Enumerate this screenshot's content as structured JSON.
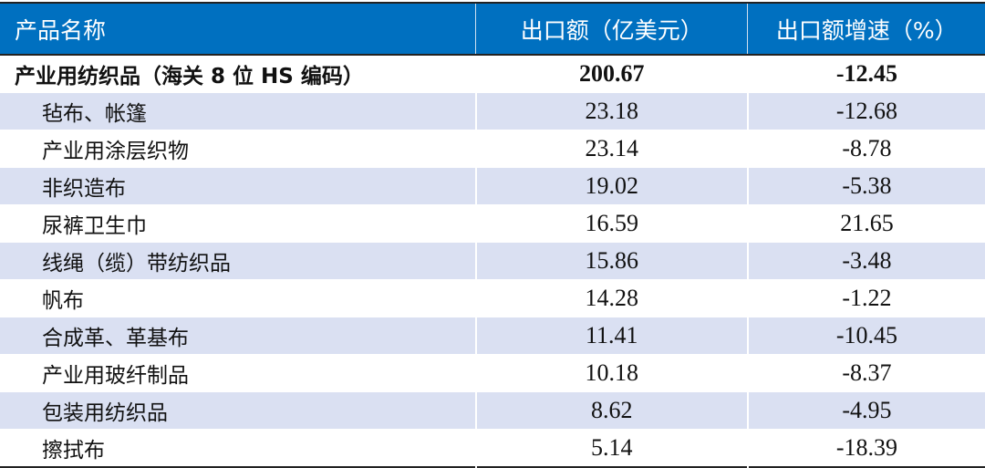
{
  "header": {
    "name": "产品名称",
    "export": "出口额（亿美元）",
    "growth": "出口额增速（%）"
  },
  "total": {
    "name": "产业用纺织品（海关 8 位 HS 编码）",
    "export": "200.67",
    "growth": "-12.45"
  },
  "rows": [
    {
      "name": "毡布、帐篷",
      "export": "23.18",
      "growth": "-12.68"
    },
    {
      "name": "产业用涂层织物",
      "export": "23.14",
      "growth": "-8.78"
    },
    {
      "name": "非织造布",
      "export": "19.02",
      "growth": "-5.38"
    },
    {
      "name": "尿裤卫生巾",
      "export": "16.59",
      "growth": "21.65"
    },
    {
      "name": "线绳（缆）带纺织品",
      "export": "15.86",
      "growth": "-3.48"
    },
    {
      "name": "帆布",
      "export": "14.28",
      "growth": "-1.22"
    },
    {
      "name": "合成革、革基布",
      "export": "11.41",
      "growth": "-10.45"
    },
    {
      "name": "产业用玻纤制品",
      "export": "10.18",
      "growth": "-8.37"
    },
    {
      "name": "包装用纺织品",
      "export": "8.62",
      "growth": "-4.95"
    },
    {
      "name": "擦拭布",
      "export": "5.14",
      "growth": "-18.39"
    }
  ],
  "colors": {
    "header_bg": "#0070c0",
    "stripe": "#dae0f2"
  }
}
